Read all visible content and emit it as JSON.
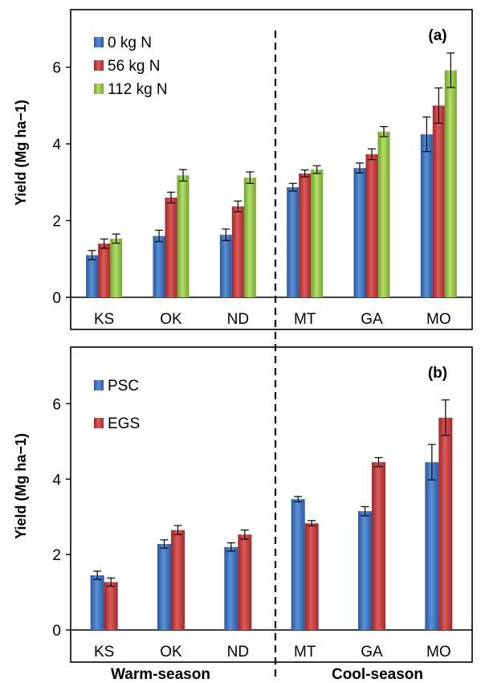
{
  "chart_data": [
    {
      "panel": "(a)",
      "type": "bar",
      "ylabel": "Yield (Mg ha−1)",
      "ylim": [
        0,
        7.5
      ],
      "yticks": [
        "0",
        "2",
        "4",
        "6"
      ],
      "categories": [
        "KS",
        "OK",
        "ND",
        "MT",
        "GA",
        "MO"
      ],
      "legend_position": "top-left",
      "grid": false,
      "series": [
        {
          "name": "0 kg N",
          "color": "#3b6fbf",
          "values": [
            1.1,
            1.6,
            1.63,
            2.87,
            3.37,
            4.25
          ],
          "errors": [
            0.12,
            0.15,
            0.15,
            0.1,
            0.13,
            0.45
          ]
        },
        {
          "name": "56 kg N",
          "color": "#c0393b",
          "values": [
            1.4,
            2.6,
            2.37,
            3.23,
            3.73,
            5.0
          ],
          "errors": [
            0.12,
            0.14,
            0.14,
            0.09,
            0.14,
            0.46
          ]
        },
        {
          "name": "112 kg N",
          "color": "#92c341",
          "values": [
            1.53,
            3.18,
            3.12,
            3.33,
            4.32,
            5.92
          ],
          "errors": [
            0.12,
            0.15,
            0.15,
            0.1,
            0.13,
            0.45
          ]
        }
      ]
    },
    {
      "panel": "(b)",
      "type": "bar",
      "ylabel": "Yield (Mg ha−1)",
      "ylim": [
        0,
        7.5
      ],
      "yticks": [
        "0",
        "2",
        "4",
        "6"
      ],
      "categories": [
        "KS",
        "OK",
        "ND",
        "MT",
        "GA",
        "MO"
      ],
      "legend_position": "top-left",
      "grid": false,
      "series": [
        {
          "name": "PSC",
          "color": "#3b6fbf",
          "values": [
            1.45,
            2.28,
            2.2,
            3.47,
            3.15,
            4.45
          ],
          "errors": [
            0.11,
            0.11,
            0.11,
            0.07,
            0.12,
            0.47
          ]
        },
        {
          "name": "EGS",
          "color": "#c0393b",
          "values": [
            1.27,
            2.65,
            2.53,
            2.83,
            4.45,
            5.63
          ],
          "errors": [
            0.11,
            0.12,
            0.12,
            0.07,
            0.12,
            0.47
          ]
        }
      ]
    }
  ],
  "season_labels": {
    "warm": "Warm-season",
    "cool": "Cool-season"
  }
}
